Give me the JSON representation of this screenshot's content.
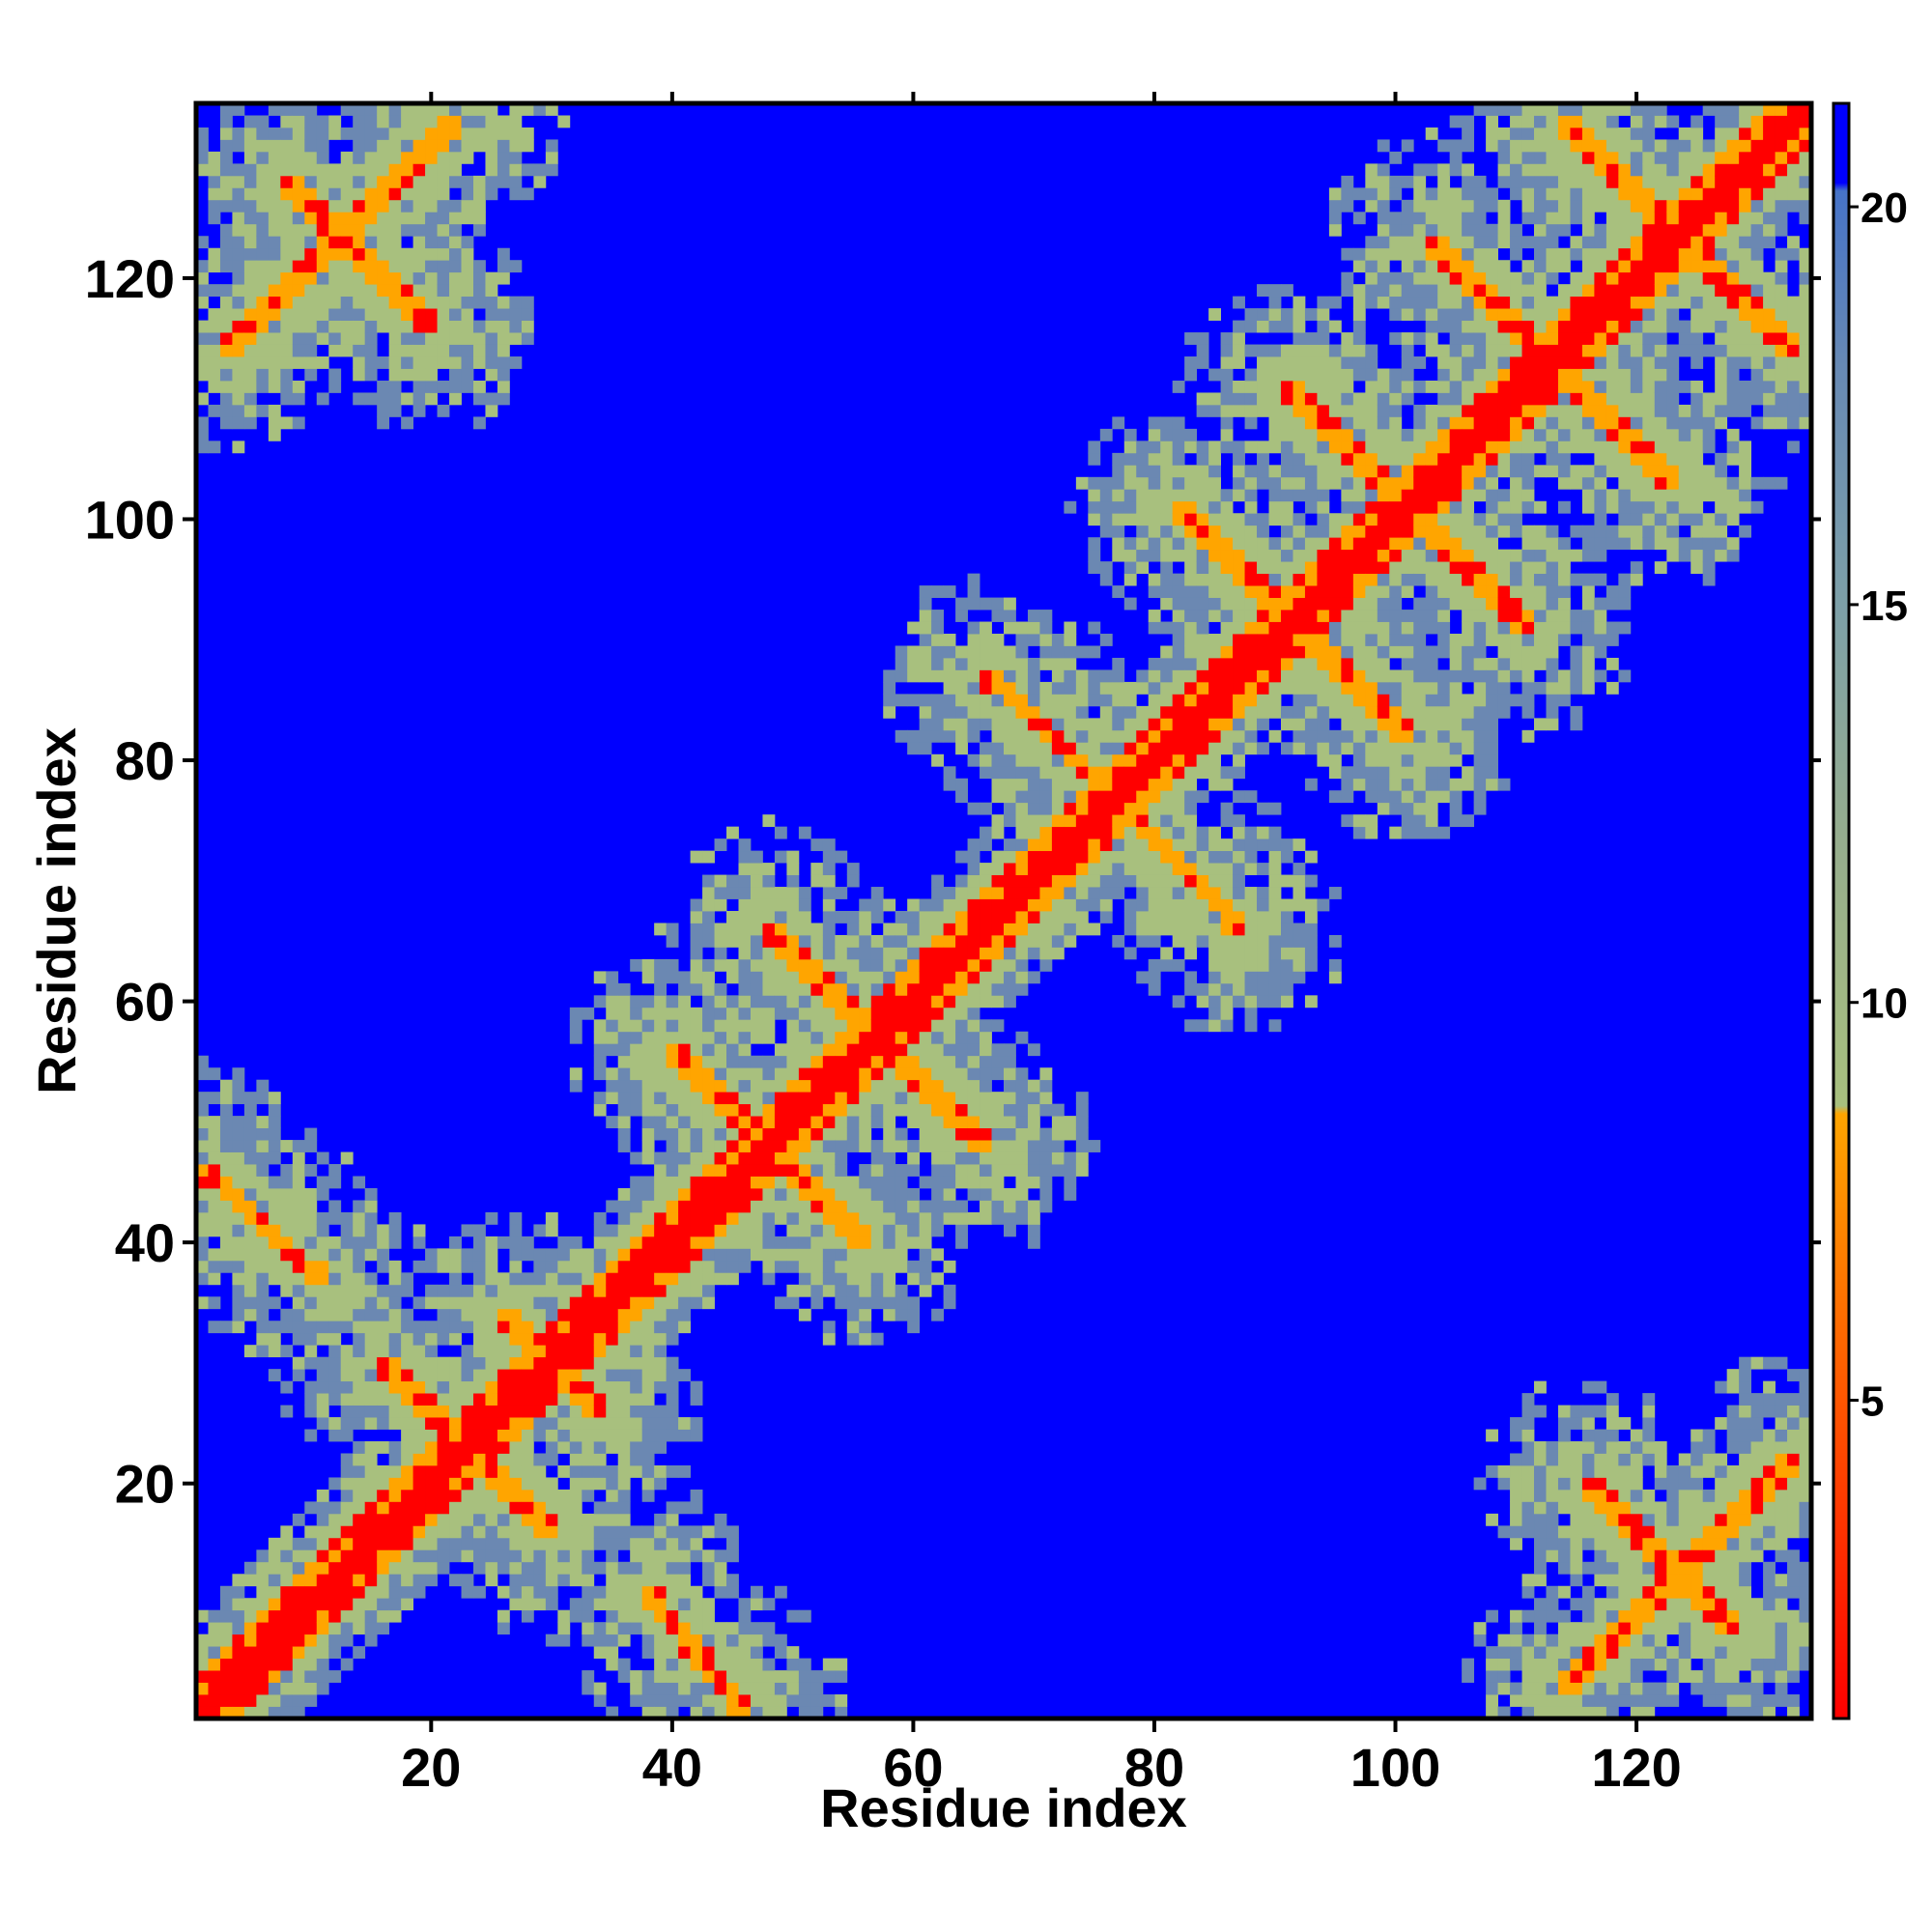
{
  "chart_data": {
    "type": "heatmap",
    "title": "",
    "xlabel": "Residue index",
    "ylabel": "Residue index",
    "n_residues": 134,
    "xlim": [
      1,
      134
    ],
    "ylim": [
      1,
      134
    ],
    "x_ticks": [
      20,
      40,
      60,
      80,
      100,
      120
    ],
    "y_ticks": [
      20,
      40,
      60,
      80,
      100,
      120
    ],
    "colorbar": {
      "min": 1,
      "max": 21.3,
      "ticks": [
        5,
        10,
        15,
        20
      ],
      "stops": [
        {
          "value": 1,
          "color": "#ff0000"
        },
        {
          "value": 4,
          "color": "#ff4000"
        },
        {
          "value": 8.6,
          "color": "#ffa500"
        },
        {
          "value": 8.7,
          "color": "#a8c07e"
        },
        {
          "value": 12,
          "color": "#96ad8d"
        },
        {
          "value": 15,
          "color": "#7da0a8"
        },
        {
          "value": 18,
          "color": "#6789b4"
        },
        {
          "value": 20.2,
          "color": "#4673c8"
        },
        {
          "value": 20.3,
          "color": "#0000ff"
        },
        {
          "value": 21.3,
          "color": "#0000ff"
        }
      ]
    },
    "colors": {
      "diagonal": "#ff0000",
      "contact": "#ffa500",
      "mid": "#a8c07e",
      "far": "#6b88b2",
      "background": "#0000ff"
    },
    "contact_segments": [
      {
        "type": "anti",
        "start": [
          1,
          46
        ],
        "end": [
          11,
          37
        ]
      },
      {
        "type": "anti",
        "start": [
          38,
          11
        ],
        "end": [
          46,
          1
        ]
      },
      {
        "type": "parallel",
        "start": [
          3,
          114
        ],
        "end": [
          22,
          133
        ]
      },
      {
        "type": "parallel",
        "start": [
          114,
          3
        ],
        "end": [
          133,
          22
        ]
      },
      {
        "type": "anti",
        "start": [
          40,
          56
        ],
        "end": [
          48,
          48
        ]
      },
      {
        "type": "anti",
        "start": [
          48,
          48
        ],
        "end": [
          56,
          40
        ]
      },
      {
        "type": "anti",
        "start": [
          48,
          66
        ],
        "end": [
          66,
          48
        ]
      },
      {
        "type": "anti",
        "start": [
          66,
          87
        ],
        "end": [
          76,
          78
        ]
      },
      {
        "type": "anti",
        "start": [
          78,
          76
        ],
        "end": [
          87,
          66
        ]
      },
      {
        "type": "anti",
        "start": [
          82,
          101
        ],
        "end": [
          92,
          91
        ]
      },
      {
        "type": "anti",
        "start": [
          92,
          91
        ],
        "end": [
          101,
          82
        ]
      },
      {
        "type": "anti",
        "start": [
          91,
          111
        ],
        "end": [
          100,
          102
        ]
      },
      {
        "type": "anti",
        "start": [
          102,
          100
        ],
        "end": [
          111,
          91
        ]
      },
      {
        "type": "anti",
        "start": [
          103,
          123
        ],
        "end": [
          112,
          114
        ]
      },
      {
        "type": "anti",
        "start": [
          114,
          112
        ],
        "end": [
          123,
          103
        ]
      },
      {
        "type": "anti",
        "start": [
          114,
          133
        ],
        "end": [
          125,
          122
        ]
      },
      {
        "type": "anti",
        "start": [
          122,
          125
        ],
        "end": [
          133,
          114
        ]
      },
      {
        "type": "anti",
        "start": [
          26,
          34
        ],
        "end": [
          34,
          26
        ]
      },
      {
        "type": "anti",
        "start": [
          16,
          30
        ],
        "end": [
          30,
          16
        ]
      },
      {
        "type": "anti",
        "start": [
          116,
          20
        ],
        "end": [
          128,
          8
        ]
      },
      {
        "type": "anti",
        "start": [
          8,
          128
        ],
        "end": [
          20,
          116
        ]
      }
    ]
  }
}
